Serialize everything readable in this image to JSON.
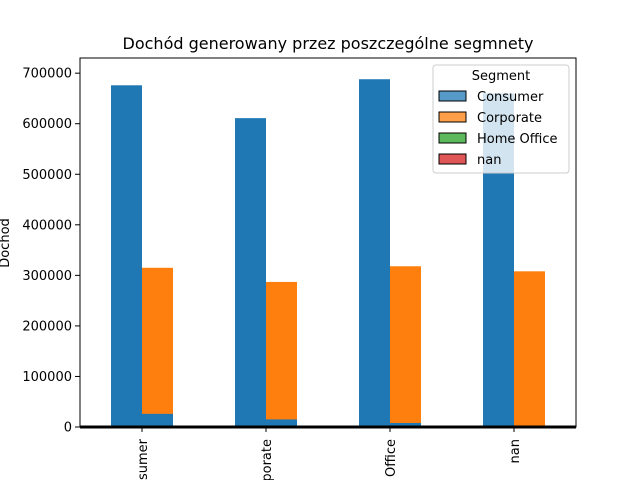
{
  "chart_data": {
    "type": "bar",
    "title": "Dochód generowany przez poszczególne segmnety",
    "xlabel": "",
    "ylabel": "Dochod",
    "ylim": [
      0,
      730000
    ],
    "yticks": [
      0,
      100000,
      200000,
      300000,
      400000,
      500000,
      600000,
      700000
    ],
    "ytick_labels": [
      "0",
      "100000",
      "200000",
      "300000",
      "400000",
      "500000",
      "600000",
      "700000"
    ],
    "categories": [
      "Consumer",
      "Corporate",
      "Home Office",
      "nan"
    ],
    "category_labels_visible": [
      "sumer",
      "porate",
      "Office",
      "nan"
    ],
    "series": [
      {
        "name": "Consumer",
        "color": "#1f77b4",
        "values": [
          676000,
          611000,
          688000,
          660000
        ]
      },
      {
        "name": "Corporate",
        "color": "#ff7f0e",
        "values": [
          315000,
          287000,
          318000,
          308000
        ]
      }
    ],
    "overlay_bars": {
      "color": "#1f77b4",
      "values": [
        26000,
        15000,
        8000,
        0
      ]
    },
    "legend": {
      "title": "Segment",
      "position": "top-right",
      "entries": [
        {
          "label": "Consumer",
          "color": "#5799c7"
        },
        {
          "label": "Corporate",
          "color": "#ff9f4a"
        },
        {
          "label": "Home Office",
          "color": "#5cb85c"
        },
        {
          "label": "nan",
          "color": "#e05555"
        }
      ]
    },
    "grid": false
  }
}
